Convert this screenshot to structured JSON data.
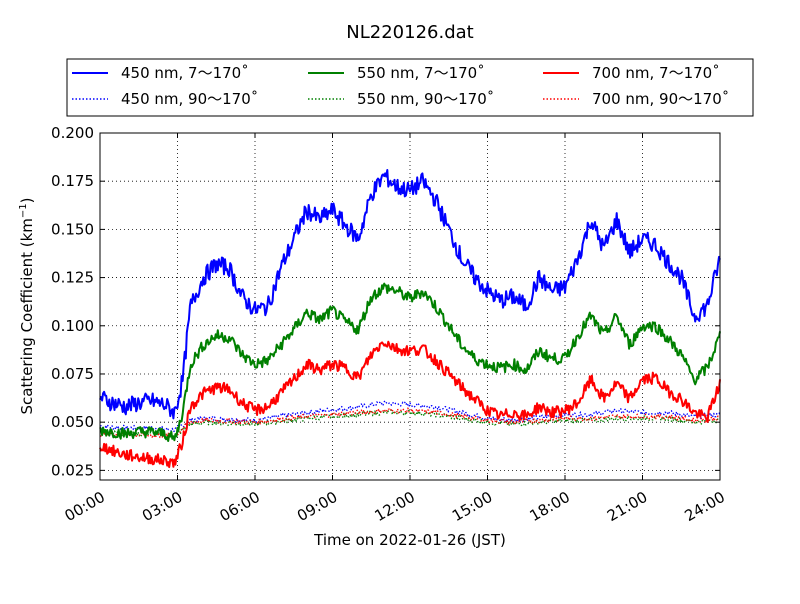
{
  "chart_data": {
    "type": "line",
    "title": "NL220126.dat",
    "xlabel": "Time on 2022-01-26 (JST)",
    "ylabel": "Scattering Coefficient (km",
    "ylabel_exp": "−1",
    "ylabel_close": ")",
    "xlim": [
      0,
      24
    ],
    "ylim": [
      0.02,
      0.2
    ],
    "x_ticks": [
      0,
      3,
      6,
      9,
      12,
      15,
      18,
      21,
      24
    ],
    "x_tick_labels": [
      "00:00",
      "03:00",
      "06:00",
      "09:00",
      "12:00",
      "15:00",
      "18:00",
      "21:00",
      "24:00"
    ],
    "y_ticks": [
      0.025,
      0.05,
      0.075,
      0.1,
      0.125,
      0.15,
      0.175,
      0.2
    ],
    "y_tick_labels": [
      "0.025",
      "0.050",
      "0.075",
      "0.100",
      "0.125",
      "0.150",
      "0.175",
      "0.200"
    ],
    "grid": true,
    "legend_position": "top, above plot, 3 columns",
    "series": [
      {
        "name": "450 nm, 7～170˚",
        "color": "#0000ff",
        "style": "solid",
        "x": [
          0,
          0.5,
          1,
          1.5,
          2,
          2.5,
          2.9,
          3.2,
          3.5,
          4,
          4.5,
          5,
          5.5,
          6,
          6.5,
          7,
          7.5,
          8,
          8.5,
          9,
          9.5,
          10,
          10.5,
          11,
          11.5,
          12,
          12.5,
          13,
          13.5,
          14,
          14.5,
          15,
          15.5,
          16,
          16.5,
          17,
          17.5,
          18,
          18.5,
          19,
          19.5,
          20,
          20.5,
          21,
          21.5,
          22,
          22.5,
          23,
          23.5,
          24
        ],
        "values": [
          0.063,
          0.06,
          0.058,
          0.06,
          0.061,
          0.059,
          0.055,
          0.072,
          0.11,
          0.125,
          0.132,
          0.13,
          0.115,
          0.108,
          0.11,
          0.13,
          0.145,
          0.16,
          0.155,
          0.16,
          0.152,
          0.145,
          0.168,
          0.178,
          0.172,
          0.17,
          0.175,
          0.165,
          0.15,
          0.135,
          0.125,
          0.118,
          0.113,
          0.115,
          0.11,
          0.125,
          0.118,
          0.12,
          0.135,
          0.155,
          0.14,
          0.155,
          0.138,
          0.145,
          0.142,
          0.133,
          0.125,
          0.105,
          0.11,
          0.135
        ]
      },
      {
        "name": "450 nm, 90～170˚",
        "color": "#0000ff",
        "style": "dotted",
        "x": [
          0,
          1,
          2,
          2.9,
          3.5,
          4,
          6,
          8,
          10,
          11,
          12,
          13,
          14,
          15,
          16,
          18,
          19,
          20,
          21,
          22,
          23,
          24
        ],
        "values": [
          0.048,
          0.047,
          0.047,
          0.046,
          0.051,
          0.052,
          0.051,
          0.055,
          0.058,
          0.06,
          0.059,
          0.058,
          0.055,
          0.052,
          0.051,
          0.054,
          0.054,
          0.056,
          0.055,
          0.055,
          0.053,
          0.054
        ]
      },
      {
        "name": "550 nm, 7～170˚",
        "color": "#008000",
        "style": "solid",
        "x": [
          0,
          0.5,
          1,
          1.5,
          2,
          2.5,
          2.9,
          3.2,
          3.5,
          4,
          4.5,
          5,
          5.5,
          6,
          6.5,
          7,
          7.5,
          8,
          8.5,
          9,
          9.5,
          10,
          10.5,
          11,
          11.5,
          12,
          12.5,
          13,
          13.5,
          14,
          14.5,
          15,
          15.5,
          16,
          16.5,
          17,
          17.5,
          18,
          18.5,
          19,
          19.5,
          20,
          20.5,
          21,
          21.5,
          22,
          22.5,
          23,
          23.5,
          24
        ],
        "values": [
          0.046,
          0.045,
          0.044,
          0.045,
          0.045,
          0.044,
          0.041,
          0.055,
          0.08,
          0.09,
          0.095,
          0.094,
          0.085,
          0.08,
          0.082,
          0.09,
          0.098,
          0.107,
          0.103,
          0.108,
          0.102,
          0.098,
          0.115,
          0.12,
          0.118,
          0.114,
          0.118,
          0.11,
          0.1,
          0.09,
          0.083,
          0.08,
          0.078,
          0.08,
          0.077,
          0.087,
          0.083,
          0.083,
          0.095,
          0.105,
          0.095,
          0.105,
          0.09,
          0.1,
          0.1,
          0.093,
          0.085,
          0.072,
          0.078,
          0.095
        ]
      },
      {
        "name": "550 nm, 90～170˚",
        "color": "#008000",
        "style": "dotted",
        "x": [
          0,
          1,
          2,
          2.9,
          3.5,
          4,
          6,
          8,
          10,
          11,
          12,
          13,
          14,
          15,
          16,
          18,
          19,
          20,
          21,
          22,
          23,
          24
        ],
        "values": [
          0.045,
          0.044,
          0.044,
          0.043,
          0.049,
          0.05,
          0.049,
          0.052,
          0.054,
          0.055,
          0.055,
          0.054,
          0.052,
          0.05,
          0.049,
          0.051,
          0.051,
          0.052,
          0.052,
          0.052,
          0.05,
          0.051
        ]
      },
      {
        "name": "700 nm, 7～170˚",
        "color": "#ff0000",
        "style": "solid",
        "x": [
          0,
          0.5,
          1,
          1.5,
          2,
          2.5,
          2.9,
          3.2,
          3.5,
          4,
          4.5,
          5,
          5.5,
          6,
          6.5,
          7,
          7.5,
          8,
          8.5,
          9,
          9.5,
          10,
          10.5,
          11,
          11.5,
          12,
          12.5,
          13,
          13.5,
          14,
          14.5,
          15,
          15.5,
          16,
          16.5,
          17,
          17.5,
          18,
          18.5,
          19,
          19.5,
          20,
          20.5,
          21,
          21.5,
          22,
          22.5,
          23,
          23.5,
          24
        ],
        "values": [
          0.038,
          0.035,
          0.033,
          0.032,
          0.031,
          0.03,
          0.029,
          0.04,
          0.058,
          0.065,
          0.068,
          0.067,
          0.06,
          0.056,
          0.058,
          0.065,
          0.072,
          0.08,
          0.077,
          0.08,
          0.078,
          0.073,
          0.085,
          0.092,
          0.088,
          0.087,
          0.088,
          0.082,
          0.075,
          0.068,
          0.062,
          0.056,
          0.053,
          0.055,
          0.053,
          0.058,
          0.055,
          0.056,
          0.06,
          0.072,
          0.062,
          0.07,
          0.062,
          0.072,
          0.073,
          0.066,
          0.062,
          0.055,
          0.052,
          0.07
        ]
      },
      {
        "name": "700 nm, 90～170˚",
        "color": "#ff0000",
        "style": "dotted",
        "x": [
          0,
          1,
          2,
          2.9,
          3.5,
          4,
          6,
          8,
          10,
          11,
          12,
          13,
          14,
          15,
          16,
          18,
          19,
          20,
          21,
          22,
          23,
          24
        ],
        "values": [
          0.044,
          0.044,
          0.043,
          0.043,
          0.05,
          0.051,
          0.05,
          0.053,
          0.055,
          0.056,
          0.056,
          0.055,
          0.053,
          0.051,
          0.05,
          0.052,
          0.052,
          0.053,
          0.053,
          0.053,
          0.051,
          0.052
        ]
      }
    ]
  }
}
